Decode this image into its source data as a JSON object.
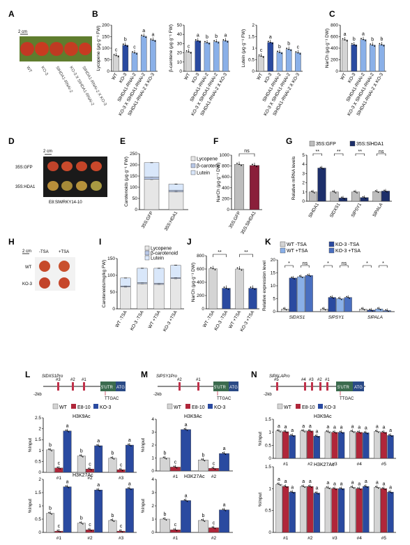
{
  "colors": {
    "wt": "#d4d4d4",
    "ko": "#2a4aa0",
    "kolight": "#8ab0e8",
    "dark": "#1d2f6a",
    "e8": "#b0263a",
    "gfp": "#bdbdbd",
    "hda1": "#8a1f3a",
    "lyc": "#e6e6e6",
    "bcar": "#b8c7e6",
    "lut": "#d9e7fa"
  },
  "panels": {
    "A": {
      "label": "A",
      "scale": "2 cm",
      "fruit": [
        "WT",
        "KO-3",
        "SlHDA1-RNAi-2",
        "KO-3 X SlHDA1-RNAi-2",
        "SlHDA1-RNAi-2 X KO-3"
      ]
    },
    "B": {
      "label": "B"
    },
    "C": {
      "label": "C"
    },
    "D": {
      "label": "D",
      "scale": "2 cm",
      "rows": [
        "35S:GFP",
        "35S:HDA1"
      ],
      "caption": "E8:SlWRKY14-10"
    },
    "E": {
      "label": "E"
    },
    "F": {
      "label": "F"
    },
    "G": {
      "label": "G"
    },
    "H": {
      "label": "H",
      "scale": "2 cm",
      "cols": [
        "-TSA",
        "+TSA"
      ],
      "rows": [
        "WT",
        "KO-3"
      ]
    },
    "I": {
      "label": "I"
    },
    "J": {
      "label": "J"
    },
    "K": {
      "label": "K"
    },
    "L": {
      "label": "L",
      "promoter": "SlDXS1Pro",
      "kb": "-2kb",
      "motif": "TTGAC",
      "utr": "5'UTR",
      "atg": "ATG",
      "sites": [
        "#1",
        "#2",
        "#3"
      ],
      "legend": [
        "WT",
        "E8-10",
        "KO-3"
      ],
      "mark1": "H3K9Ac",
      "mark2": "H3K27Ac",
      "ylabel": "%Input"
    },
    "M": {
      "label": "M",
      "promoter": "SlPSY1Pro",
      "kb": "-2kb",
      "motif": "TTGAC",
      "utr": "5'UTR",
      "atg": "ATG",
      "sites": [
        "#1",
        "#2"
      ],
      "legend": [
        "WT",
        "E8-10",
        "KO-3"
      ],
      "mark1": "H3K9Ac",
      "mark2": "H3K27Ac",
      "ylabel": "%Input"
    },
    "N": {
      "label": "N",
      "promoter": "SlPALAPro",
      "kb": "-2kb",
      "motif": "TTGAC",
      "utr": "5'UTR",
      "atg": "ATG",
      "sites": [
        "#5",
        "#4",
        "#3",
        "#2",
        "#1"
      ],
      "legend": [
        "WT",
        "E8-10",
        "KO-3"
      ],
      "mark1": "H3K9Ac",
      "mark2": "H3K27Ac",
      "ylabel": "%Input"
    }
  },
  "chart_data": [
    {
      "id": "B1",
      "type": "bar",
      "ylabel": "Lycopene (μg·g⁻¹ FW)",
      "ylim": [
        0,
        200
      ],
      "yticks": [
        0,
        50,
        100,
        150,
        200
      ],
      "categories": [
        "WT",
        "KO-3",
        "SlHDA1-RNAi-2",
        "KO-3 X SlHDA1-RNAi-2",
        "SlHDA1-RNAi-2 X KO-3"
      ],
      "values": [
        68,
        113,
        80,
        152,
        135
      ],
      "letters": [
        "c",
        "b",
        "c",
        "a",
        "a"
      ],
      "colors": [
        "wt",
        "ko",
        "kolight",
        "kolight",
        "kolight"
      ]
    },
    {
      "id": "B2",
      "type": "bar",
      "ylabel": "β-carotene (μg·g⁻¹ FW)",
      "ylim": [
        0,
        50
      ],
      "yticks": [
        0,
        10,
        20,
        30,
        40,
        50
      ],
      "categories": [
        "WT",
        "KO-3",
        "SlHDA1-RNAi-2",
        "KO-3 X SlHDA1-RNAi-2",
        "SlHDA1-RNAi-2 X KO-3"
      ],
      "values": [
        21,
        33,
        31,
        32,
        33
      ],
      "letters": [
        "c",
        "a",
        "b",
        "b",
        "a"
      ],
      "colors": [
        "wt",
        "ko",
        "kolight",
        "kolight",
        "kolight"
      ]
    },
    {
      "id": "B3",
      "type": "bar",
      "ylabel": "Lutein (μg·g⁻¹ FW)",
      "ylim": [
        0,
        2.0
      ],
      "yticks": [
        0,
        0.5,
        1.0,
        1.5,
        2.0
      ],
      "categories": [
        "WT",
        "KO-3",
        "SlHDA1-RNAi-2",
        "KO-3 X SlHDA1-RNAi-2",
        "SlHDA1-RNAi-2 X KO-3"
      ],
      "values": [
        0.66,
        1.25,
        0.82,
        0.95,
        0.8
      ],
      "letters": [
        "c",
        "a",
        "b",
        "b",
        "c"
      ],
      "colors": [
        "wt",
        "ko",
        "kolight",
        "kolight",
        "kolight"
      ]
    },
    {
      "id": "C",
      "type": "bar",
      "ylabel": "NarCh (μg·g⁻¹ DW)",
      "ylim": [
        0,
        800
      ],
      "yticks": [
        0,
        200,
        400,
        600,
        800
      ],
      "categories": [
        "WT",
        "KO-3",
        "SlHDA1-RNAi-2",
        "KO-3 X SlHDA1-RNAi-2",
        "SlHDA1-RNAi-2 X KO-3"
      ],
      "values": [
        545,
        460,
        550,
        455,
        460
      ],
      "letters": [
        "a",
        "b",
        "a",
        "b",
        "b"
      ],
      "colors": [
        "wt",
        "ko",
        "kolight",
        "kolight",
        "kolight"
      ]
    },
    {
      "id": "E",
      "type": "bar",
      "ylabel": "Carotenoids (μg·g⁻¹ FW)",
      "ylim": [
        0,
        250
      ],
      "yticks": [
        0,
        50,
        100,
        150,
        200,
        250
      ],
      "categories": [
        "35S:GFP",
        "35S:HDA1"
      ],
      "series": [
        {
          "name": "Lycopene",
          "values": [
            135,
            80
          ]
        },
        {
          "name": "β-carotene",
          "values": [
            10,
            7
          ]
        },
        {
          "name": "Lutein",
          "values": [
            65,
            27
          ]
        }
      ]
    },
    {
      "id": "F",
      "type": "bar",
      "ylabel": "NarCh (μg·g⁻¹ DW)",
      "ylim": [
        0,
        1000
      ],
      "yticks": [
        0,
        200,
        400,
        600,
        800,
        1000
      ],
      "categories": [
        "35S:GFP",
        "35S:SlHDA1"
      ],
      "values": [
        830,
        810
      ],
      "colors": [
        "gfp",
        "hda1"
      ],
      "bracket": "ns"
    },
    {
      "id": "G",
      "type": "bar",
      "ylabel": "Relative mRNA levels",
      "ylim": [
        0,
        5
      ],
      "yticks": [
        0,
        1,
        2,
        3,
        4,
        5
      ],
      "categories": [
        "SlHDA1",
        "SlDXS1",
        "SlPSY1",
        "SlPALA"
      ],
      "series": [
        {
          "name": "35S:GFP",
          "values": [
            1.0,
            1.0,
            1.0,
            1.05
          ]
        },
        {
          "name": "35S:SlHDA1",
          "values": [
            3.6,
            0.35,
            0.4,
            1.1
          ]
        }
      ],
      "sig": [
        "**",
        "**",
        "**",
        "ns"
      ]
    },
    {
      "id": "I",
      "type": "bar",
      "ylabel": "Carotenoids/mg/kg FW)",
      "ylim": [
        0,
        150
      ],
      "yticks": [
        0,
        50,
        100,
        150
      ],
      "categories": [
        "WT -TSA",
        "KO-3 -TSA",
        "WT +TSA",
        "KO-3 +TSA"
      ],
      "series": [
        {
          "name": "Lycopene",
          "values": [
            65,
            75,
            73,
            90
          ]
        },
        {
          "name": "β-carotenoid",
          "values": [
            3,
            3,
            3,
            3
          ]
        },
        {
          "name": "Lutein",
          "values": [
            24,
            43,
            45,
            37
          ]
        }
      ]
    },
    {
      "id": "J",
      "type": "bar",
      "ylabel": "NarCh (μg·g⁻¹ DW)",
      "ylim": [
        0,
        800
      ],
      "yticks": [
        0,
        200,
        400,
        600,
        800
      ],
      "categories": [
        "WT -TSA",
        "KO-3 -TSA",
        "WT +TSA",
        "KO-3 +TSA"
      ],
      "values": [
        605,
        310,
        600,
        310
      ],
      "colors": [
        "wt",
        "ko",
        "wt",
        "ko"
      ],
      "sig": [
        "**",
        "**"
      ]
    },
    {
      "id": "K",
      "type": "bar",
      "ylabel": "Relative expression level",
      "ylim": [
        0,
        20
      ],
      "yticks": [
        0,
        5,
        10,
        15,
        20
      ],
      "categories": [
        "SlDXS1",
        "SlPSY1",
        "SlPALA"
      ],
      "series": [
        {
          "name": "WT -TSA",
          "values": [
            1.0,
            1.0,
            1.0
          ]
        },
        {
          "name": "KO-3 -TSA",
          "values": [
            13,
            5.5,
            0.6
          ]
        },
        {
          "name": "WT +TSA",
          "values": [
            13.5,
            5.0,
            1.05
          ]
        },
        {
          "name": "KO-3 +TSA",
          "values": [
            14,
            5.5,
            0.4
          ]
        }
      ],
      "sig": [
        "*",
        "ns",
        "*",
        "ns",
        "*",
        "*"
      ]
    },
    {
      "id": "L1",
      "type": "bar",
      "ylabel": "%Input",
      "ylim": [
        0,
        2.5
      ],
      "yticks": [
        0,
        0.5,
        1.0,
        1.5,
        2.0,
        2.5
      ],
      "categories": [
        "#1",
        "#2",
        "#3"
      ],
      "series": [
        {
          "name": "WT",
          "values": [
            1.03,
            0.75,
            0.65
          ]
        },
        {
          "name": "E8-10",
          "values": [
            0.2,
            0.15,
            0.12
          ]
        },
        {
          "name": "KO-3",
          "values": [
            1.9,
            1.22,
            1.25
          ]
        }
      ],
      "letters": [
        [
          "b",
          "c",
          "a"
        ],
        [
          "b",
          "c",
          "a"
        ],
        [
          "b",
          "c",
          "a"
        ]
      ]
    },
    {
      "id": "L2",
      "type": "bar",
      "ylabel": "%Input",
      "ylim": [
        0,
        2.0
      ],
      "yticks": [
        0,
        0.5,
        1.0,
        1.5,
        2.0
      ],
      "categories": [
        "#1",
        "#2",
        "#3"
      ],
      "series": [
        {
          "name": "WT",
          "values": [
            0.72,
            0.35,
            0.45
          ]
        },
        {
          "name": "E8-10",
          "values": [
            0.05,
            0.1,
            0.05
          ]
        },
        {
          "name": "KO-3",
          "values": [
            1.72,
            1.6,
            1.65
          ]
        }
      ],
      "letters": [
        [
          "b",
          "c",
          "a"
        ],
        [
          "b",
          "c",
          "a"
        ],
        [
          "b",
          "c",
          "a"
        ]
      ]
    },
    {
      "id": "M1",
      "type": "bar",
      "ylabel": "%Input",
      "ylim": [
        0,
        4
      ],
      "yticks": [
        0,
        1,
        2,
        3,
        4
      ],
      "categories": [
        "#1",
        "#2"
      ],
      "series": [
        {
          "name": "WT",
          "values": [
            1.0,
            0.85
          ]
        },
        {
          "name": "E8-10",
          "values": [
            0.3,
            0.2
          ]
        },
        {
          "name": "KO-3",
          "values": [
            3.2,
            1.35
          ]
        }
      ],
      "letters": [
        [
          "b",
          "c",
          "a"
        ],
        [
          "b",
          "c",
          "a"
        ]
      ]
    },
    {
      "id": "M2",
      "type": "bar",
      "ylabel": "%Input",
      "ylim": [
        0,
        4
      ],
      "yticks": [
        0,
        1,
        2,
        3,
        4
      ],
      "categories": [
        "#1",
        "#2"
      ],
      "series": [
        {
          "name": "WT",
          "values": [
            1.0,
            0.9
          ]
        },
        {
          "name": "E8-10",
          "values": [
            0.2,
            0.35
          ]
        },
        {
          "name": "KO-3",
          "values": [
            2.4,
            1.7
          ]
        }
      ],
      "letters": [
        [
          "b",
          "c",
          "a"
        ],
        [
          "b",
          "c",
          "a"
        ]
      ]
    },
    {
      "id": "N1",
      "type": "bar",
      "ylabel": "%Input",
      "ylim": [
        0,
        1.5
      ],
      "yticks": [
        0,
        0.5,
        1.0,
        1.5
      ],
      "categories": [
        "#1",
        "#2",
        "#3",
        "#4",
        "#5"
      ],
      "series": [
        {
          "name": "WT",
          "values": [
            1.05,
            1.05,
            1.02,
            1.03,
            1.03
          ]
        },
        {
          "name": "E8-10",
          "values": [
            1.02,
            1.05,
            1.0,
            1.0,
            1.0
          ]
        },
        {
          "name": "KO-3",
          "values": [
            0.88,
            0.85,
            1.0,
            0.98,
            0.88
          ]
        }
      ],
      "letters": [
        [
          "a",
          "a",
          "a"
        ],
        [
          "a",
          "a",
          "a"
        ],
        [
          "a",
          "a",
          "a"
        ],
        [
          "a",
          "a",
          "a"
        ],
        [
          "a",
          "a",
          "a"
        ]
      ]
    },
    {
      "id": "N2",
      "type": "bar",
      "ylabel": "%Input",
      "ylim": [
        0,
        1.5
      ],
      "yticks": [
        0,
        0.5,
        1.0,
        1.5
      ],
      "categories": [
        "#1",
        "#2",
        "#3",
        "#4",
        "#5"
      ],
      "series": [
        {
          "name": "WT",
          "values": [
            1.1,
            1.05,
            1.02,
            1.03,
            1.03
          ]
        },
        {
          "name": "E8-10",
          "values": [
            1.05,
            1.05,
            1.0,
            1.0,
            1.0
          ]
        },
        {
          "name": "KO-3",
          "values": [
            0.92,
            0.9,
            1.0,
            1.05,
            0.92
          ]
        }
      ],
      "letters": [
        [
          "a",
          "a",
          "a"
        ],
        [
          "a",
          "a",
          "a"
        ],
        [
          "a",
          "a",
          "a"
        ],
        [
          "a",
          "a",
          "a"
        ],
        [
          "a",
          "a",
          "a"
        ]
      ]
    }
  ]
}
